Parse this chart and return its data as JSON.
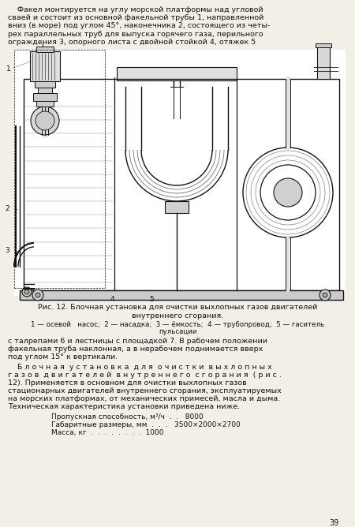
{
  "bg_color": "#f2efe6",
  "text_color": "#111111",
  "page_number": "39",
  "fig_caption_line1": "Рис. 12. Блочная установка для очистки выхлопных газов двигателей",
  "fig_caption_line2": "внутреннего сгорания.",
  "fig_legend": "1 — осевой   насос;  2 — насадка;  3 — ёмкость;  4 — трубопровод;  5 — гаситель",
  "fig_legend2": "пульсации",
  "top_lines": [
    "    Факел монтируется на углу морской платформы над угловой",
    "сваей и состоит из основной факельной трубы 1, направленной",
    "вниз (в море) под углом 45°, наконечника 2, состоящего из четы-",
    "рех параллельных труб для выпуска горячего газа, перильного",
    "ограждения 3, опорного листа с двойной стойкой 4, отяжек 5"
  ],
  "bottom_lines1": [
    "с талрепами 6 и лестницы с площадкой 7. В рабочем положении",
    "факельная труба наклонная, а в нерабочем поднимается вверх",
    "под углом 15° к вертикали."
  ],
  "bottom_lines2": [
    "    Б л о ч н а я  у с т а н о в к а  д л я  о ч и с т к и  в ы х л о п н ы х",
    "г а з о в  д в и г а т е л е й  в н у т р е н н е г о  с г о р а н и я  ( р и с .",
    "12). Применяется в основном для очистки выхлопных газов",
    "стационарных двигателей внутреннего сгорания, эксплуатируемых",
    "на морских платформах, от механических примесей, масла и дыма.",
    "Техническая характеристика установки приведена ниже."
  ],
  "tech_specs": [
    "Пропускная способность, м³/ч  .  .   8000",
    "Габаритные размеры, мм  .  .  .   3500×2000×2700",
    "Масса, кг  .  .  .  .  .  .  .  .  1000"
  ]
}
